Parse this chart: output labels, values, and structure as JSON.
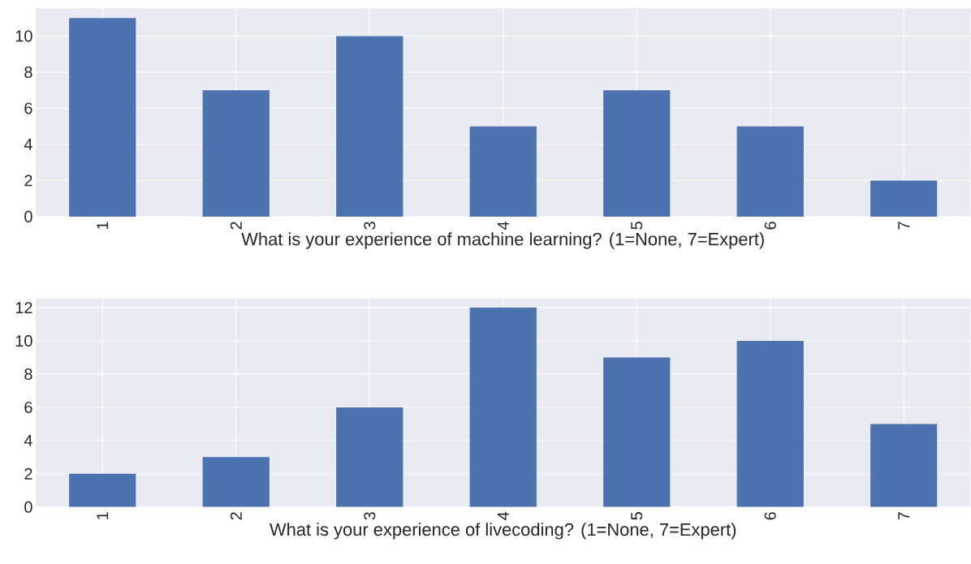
{
  "chart_data": [
    {
      "type": "bar",
      "xlabel": "What is your experience of machine learning? (1=None, 7=Expert)",
      "categories": [
        "1",
        "2",
        "3",
        "4",
        "5",
        "6",
        "7"
      ],
      "values": [
        11,
        7,
        10,
        5,
        7,
        5,
        2
      ],
      "color": "#4c72b0",
      "ylim": [
        0,
        11.55
      ],
      "yticks": [
        0,
        2,
        4,
        6,
        8,
        10
      ],
      "grid": true
    },
    {
      "type": "bar",
      "xlabel": "What is your experience of livecoding? (1=None, 7=Expert)",
      "categories": [
        "1",
        "2",
        "3",
        "4",
        "5",
        "6",
        "7"
      ],
      "values": [
        2,
        3,
        6,
        12,
        9,
        10,
        5
      ],
      "color": "#4c72b0",
      "ylim": [
        0,
        12.55
      ],
      "yticks": [
        0,
        2,
        4,
        6,
        8,
        10,
        12
      ],
      "grid": true
    }
  ]
}
